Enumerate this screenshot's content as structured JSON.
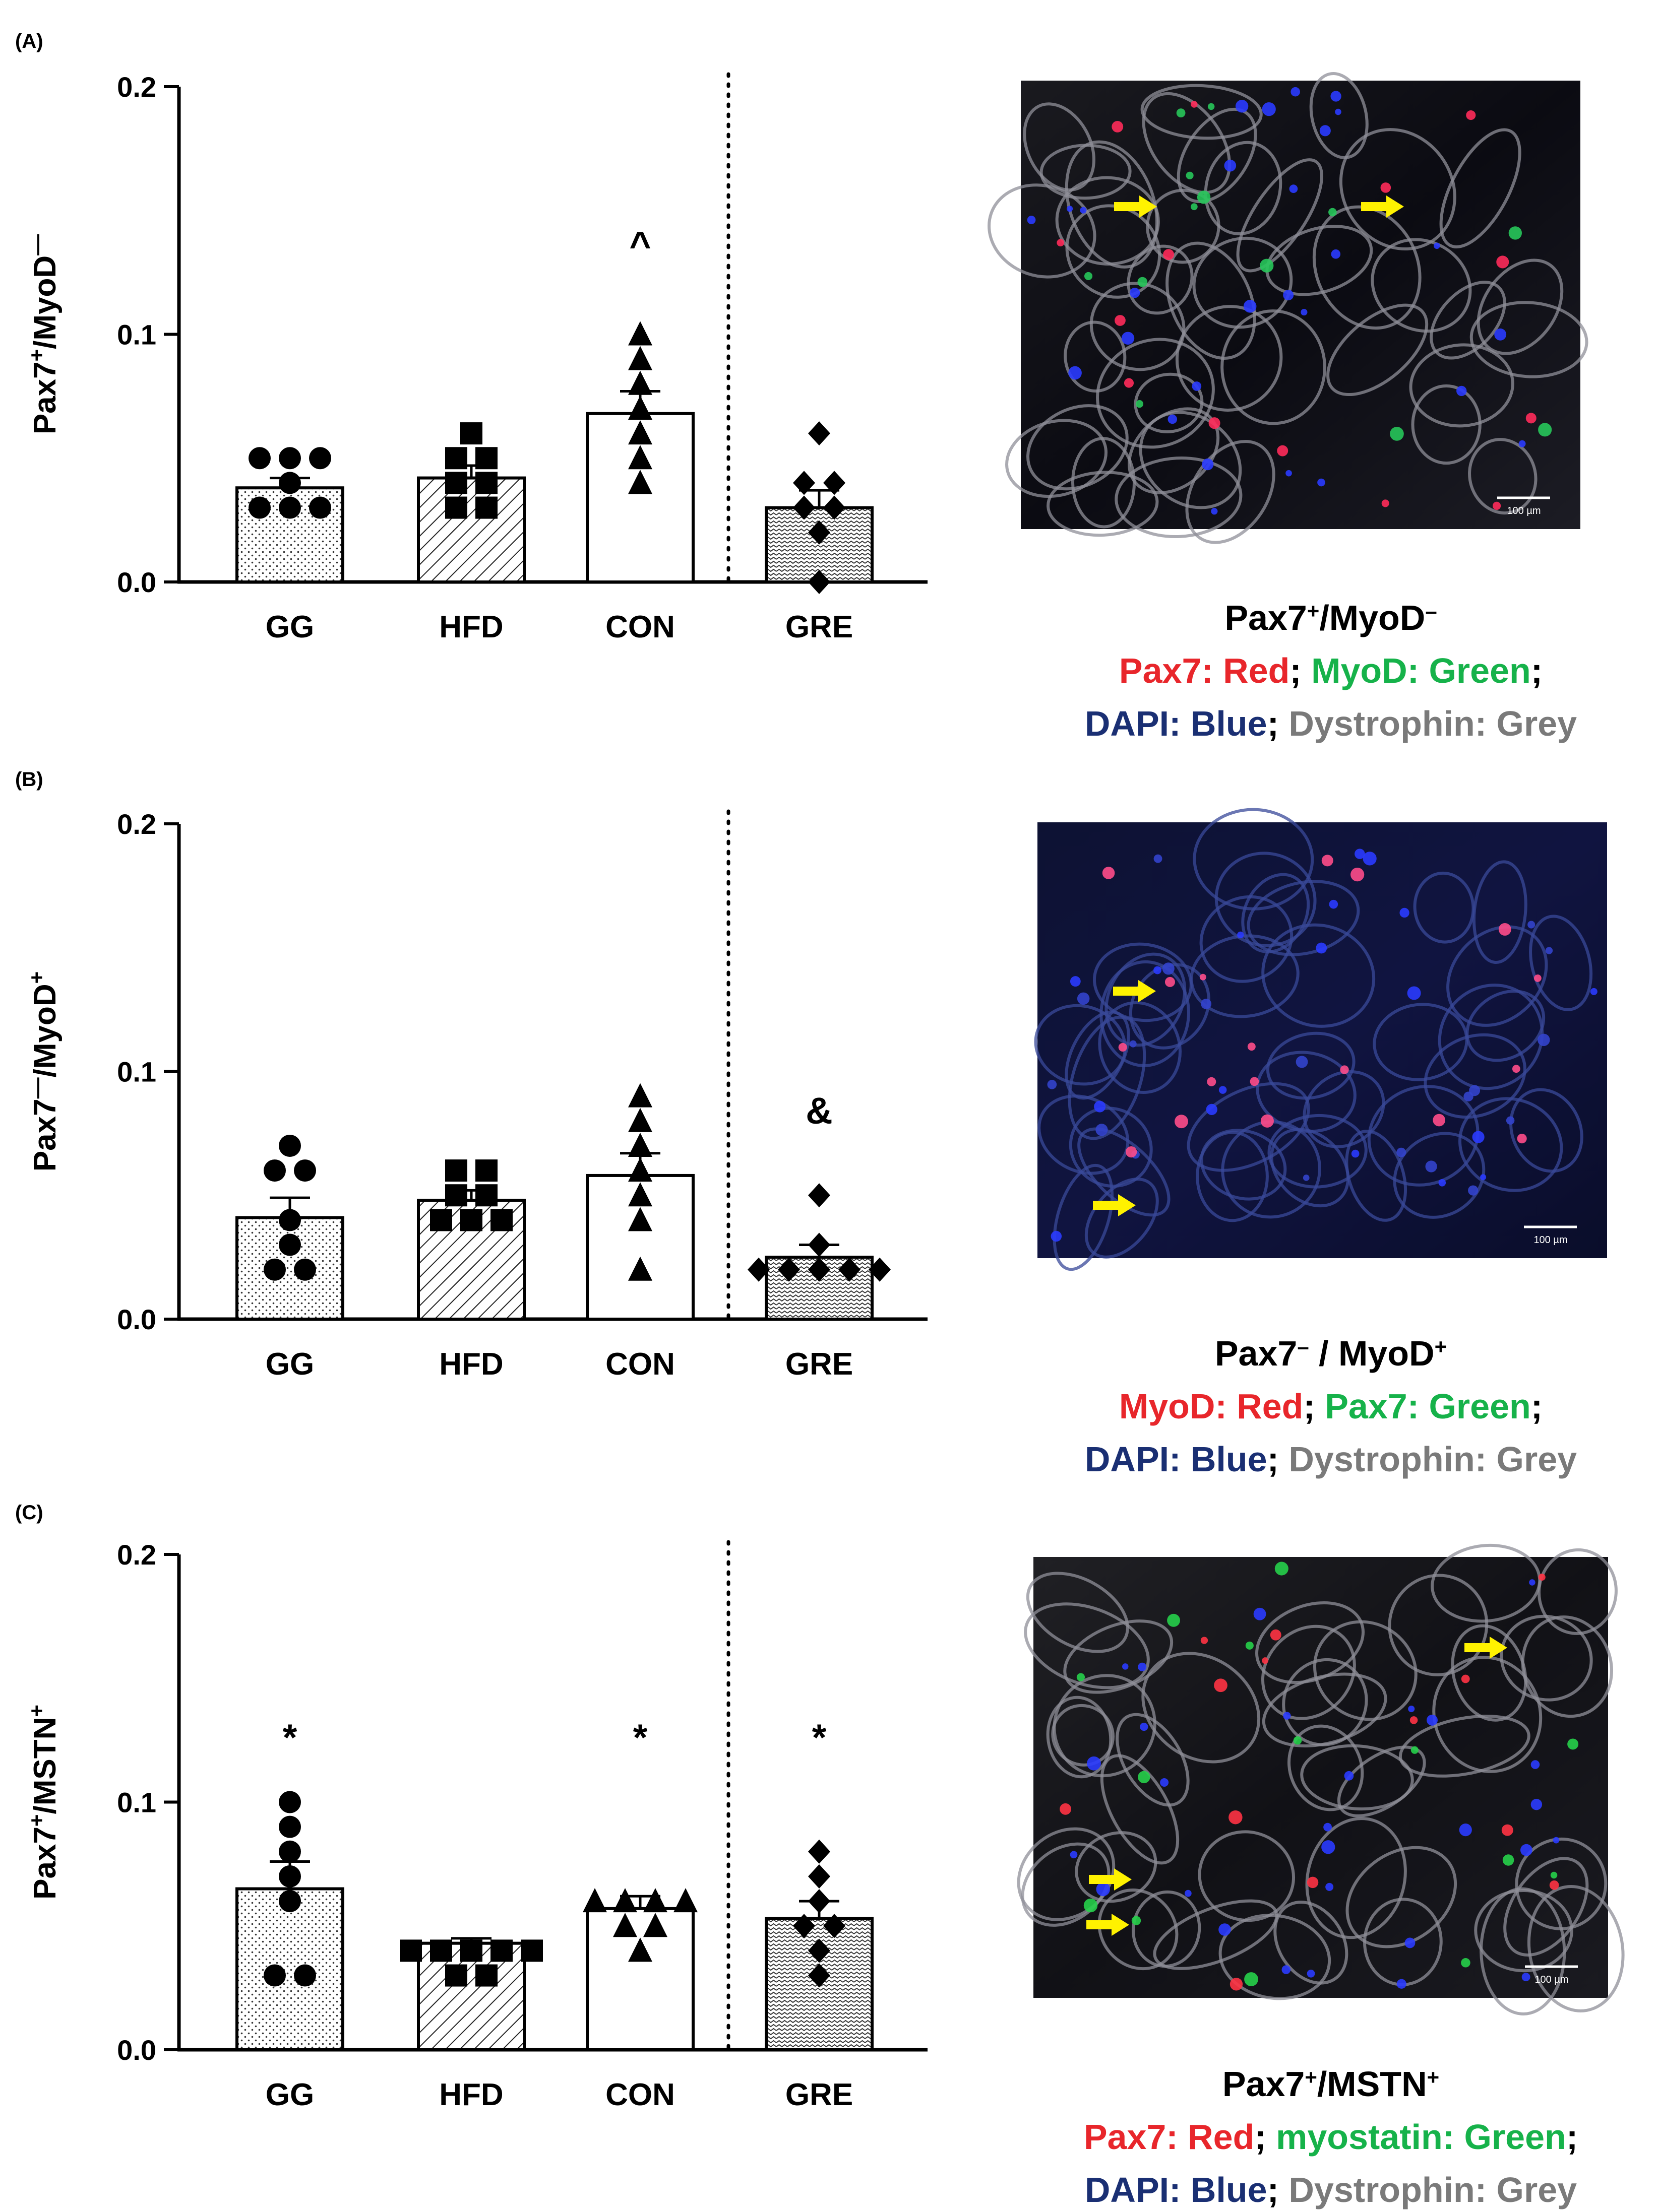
{
  "colors": {
    "red": "#e8262b",
    "green": "#16b24a",
    "blue": "#1a2f73",
    "grey": "#7a7a7a",
    "black": "#000000",
    "arrow": "#fff200"
  },
  "micro_scale_bar_label": "100 µm",
  "chart_data": [
    {
      "panel": "(A)",
      "type": "bar",
      "ylabel_main": "Pax7",
      "ylabel_sup1": "+",
      "ylabel_mid": "/MyoD",
      "ylabel_sup2": "—",
      "ylim": [
        0,
        0.2
      ],
      "yticks": [
        "0.0",
        "0.1",
        "0.2"
      ],
      "categories": [
        "GG",
        "HFD",
        "CON",
        "GRE"
      ],
      "values": [
        0.038,
        0.042,
        0.068,
        0.03
      ],
      "sem": [
        0.004,
        0.005,
        0.009,
        0.007
      ],
      "patterns": [
        "dots",
        "hatch",
        "none",
        "wave"
      ],
      "markers": [
        "circle",
        "square",
        "triangle",
        "diamond"
      ],
      "points": [
        [
          0.03,
          0.03,
          0.03,
          0.04,
          0.05,
          0.05,
          0.05
        ],
        [
          0.03,
          0.03,
          0.04,
          0.04,
          0.05,
          0.05,
          0.06
        ],
        [
          0.04,
          0.05,
          0.06,
          0.07,
          0.08,
          0.09,
          0.1
        ],
        [
          0.0,
          0.02,
          0.03,
          0.03,
          0.04,
          0.04,
          0.06
        ]
      ],
      "annotations": [
        {
          "category_index": 2,
          "text": "^",
          "y": 0.135
        }
      ],
      "separator_after": 2,
      "caption": {
        "title_a": "Pax7",
        "title_sup_a": "+",
        "title_b": "/MyoD",
        "title_sup_b": "–",
        "line1": [
          {
            "text": "Pax7: Red",
            "color": "red"
          },
          {
            "text": "; ",
            "color": "black"
          },
          {
            "text": "MyoD: Green",
            "color": "green"
          },
          {
            "text": ";",
            "color": "black"
          }
        ],
        "line2": [
          {
            "text": "DAPI: Blue",
            "color": "blue"
          },
          {
            "text": "; ",
            "color": "black"
          },
          {
            "text": "Dystrophin: Grey",
            "color": "grey"
          }
        ]
      },
      "micrograph": {
        "style": "grey-dark",
        "arrows": 2
      }
    },
    {
      "panel": "(B)",
      "type": "bar",
      "ylabel_main": "Pax7",
      "ylabel_sup1": "—",
      "ylabel_mid": "/MyoD",
      "ylabel_sup2": "+",
      "ylim": [
        0,
        0.2
      ],
      "yticks": [
        "0.0",
        "0.1",
        "0.2"
      ],
      "categories": [
        "GG",
        "HFD",
        "CON",
        "GRE"
      ],
      "values": [
        0.041,
        0.048,
        0.058,
        0.025
      ],
      "sem": [
        0.008,
        0.004,
        0.009,
        0.005
      ],
      "patterns": [
        "dots",
        "hatch",
        "none",
        "wave"
      ],
      "markers": [
        "circle",
        "square",
        "triangle",
        "diamond"
      ],
      "points": [
        [
          0.02,
          0.02,
          0.03,
          0.04,
          0.06,
          0.06,
          0.07
        ],
        [
          0.04,
          0.04,
          0.04,
          0.05,
          0.05,
          0.06,
          0.06
        ],
        [
          0.02,
          0.04,
          0.05,
          0.06,
          0.07,
          0.08,
          0.09
        ],
        [
          0.02,
          0.02,
          0.02,
          0.02,
          0.02,
          0.03,
          0.05
        ]
      ],
      "annotations": [
        {
          "category_index": 3,
          "text": "&",
          "y": 0.083
        }
      ],
      "separator_after": 2,
      "caption": {
        "title_a": "Pax7",
        "title_sup_a": "–",
        "title_b": " / MyoD",
        "title_sup_b": "+",
        "line1": [
          {
            "text": "MyoD: Red",
            "color": "red"
          },
          {
            "text": "; ",
            "color": "black"
          },
          {
            "text": "Pax7: Green",
            "color": "green"
          },
          {
            "text": ";",
            "color": "black"
          }
        ],
        "line2": [
          {
            "text": "DAPI: Blue",
            "color": "blue"
          },
          {
            "text": "; ",
            "color": "black"
          },
          {
            "text": "Dystrophin: Grey",
            "color": "grey"
          }
        ]
      },
      "micrograph": {
        "style": "blue-dark",
        "arrows": 2
      }
    },
    {
      "panel": "(C)",
      "type": "bar",
      "ylabel_main": "Pax7",
      "ylabel_sup1": "+",
      "ylabel_mid": "/MSTN",
      "ylabel_sup2": "+",
      "ylim": [
        0,
        0.2
      ],
      "yticks": [
        "0.0",
        "0.1",
        "0.2"
      ],
      "categories": [
        "GG",
        "HFD",
        "CON",
        "GRE"
      ],
      "values": [
        0.065,
        0.043,
        0.057,
        0.053
      ],
      "sem": [
        0.011,
        0.002,
        0.005,
        0.007
      ],
      "patterns": [
        "dots",
        "hatch",
        "none",
        "wave"
      ],
      "markers": [
        "circle",
        "square",
        "triangle",
        "diamond"
      ],
      "points": [
        [
          0.03,
          0.03,
          0.06,
          0.07,
          0.08,
          0.09,
          0.1
        ],
        [
          0.03,
          0.03,
          0.04,
          0.04,
          0.04,
          0.04,
          0.04
        ],
        [
          0.04,
          0.05,
          0.05,
          0.06,
          0.06,
          0.06,
          0.06
        ],
        [
          0.03,
          0.04,
          0.05,
          0.05,
          0.06,
          0.07,
          0.08
        ]
      ],
      "annotations": [
        {
          "category_index": 0,
          "text": "*",
          "y": 0.125
        },
        {
          "category_index": 2,
          "text": "*",
          "y": 0.125
        },
        {
          "category_index": 3,
          "text": "*",
          "y": 0.125
        }
      ],
      "separator_after": 2,
      "caption": {
        "title_a": "Pax7",
        "title_sup_a": "+",
        "title_b": "/MSTN",
        "title_sup_b": "+",
        "line1": [
          {
            "text": "Pax7: Red",
            "color": "red"
          },
          {
            "text": "; ",
            "color": "black"
          },
          {
            "text": "myostatin: Green",
            "color": "green"
          },
          {
            "text": ";",
            "color": "black"
          }
        ],
        "line2": [
          {
            "text": "DAPI: Blue",
            "color": "blue"
          },
          {
            "text": "; ",
            "color": "black"
          },
          {
            "text": "Dystrophin: Grey",
            "color": "grey"
          }
        ]
      },
      "micrograph": {
        "style": "grey-mixed",
        "arrows": 3
      }
    }
  ]
}
